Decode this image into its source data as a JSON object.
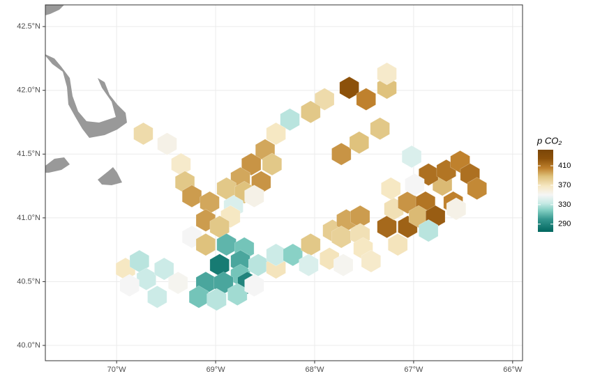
{
  "chart_data": {
    "type": "map",
    "xlim": [
      -70.72,
      -65.9
    ],
    "ylim": [
      39.88,
      42.67
    ],
    "xticks": [
      {
        "value": -70,
        "label": "70°W"
      },
      {
        "value": -69,
        "label": "69°W"
      },
      {
        "value": -68,
        "label": "68°W"
      },
      {
        "value": -67,
        "label": "67°W"
      },
      {
        "value": -66,
        "label": "66°W"
      }
    ],
    "yticks": [
      {
        "value": 40.0,
        "label": "40.0°N"
      },
      {
        "value": 40.5,
        "label": "40.5°N"
      },
      {
        "value": 41.0,
        "label": "41.0°N"
      },
      {
        "value": 41.5,
        "label": "41.5°N"
      },
      {
        "value": 42.0,
        "label": "42.0°N"
      },
      {
        "value": 42.5,
        "label": "42.5°N"
      }
    ],
    "grid": true,
    "legend_title": "p CO₂",
    "clim": [
      274,
      443
    ],
    "cticks": [
      290,
      330,
      370,
      410
    ],
    "colorscale": [
      {
        "value": 274,
        "color": "#01665e"
      },
      {
        "value": 300,
        "color": "#35978f"
      },
      {
        "value": 318,
        "color": "#80cdc1"
      },
      {
        "value": 333,
        "color": "#c7eae5"
      },
      {
        "value": 350,
        "color": "#f5f5f5"
      },
      {
        "value": 368,
        "color": "#f6e8c3"
      },
      {
        "value": 388,
        "color": "#dfc27d"
      },
      {
        "value": 405,
        "color": "#bf812d"
      },
      {
        "value": 425,
        "color": "#8c510a"
      },
      {
        "value": 443,
        "color": "#7a4608"
      }
    ],
    "cells": [
      {
        "lon": -67.65,
        "lat": 42.02,
        "value": 425
      },
      {
        "lon": -67.27,
        "lat": 42.02,
        "value": 388
      },
      {
        "lon": -67.48,
        "lat": 41.93,
        "value": 405
      },
      {
        "lon": -67.27,
        "lat": 42.13,
        "value": 365
      },
      {
        "lon": -67.9,
        "lat": 41.93,
        "value": 375
      },
      {
        "lon": -68.04,
        "lat": 41.83,
        "value": 385
      },
      {
        "lon": -68.25,
        "lat": 41.77,
        "value": 330
      },
      {
        "lon": -68.39,
        "lat": 41.66,
        "value": 368
      },
      {
        "lon": -68.5,
        "lat": 41.53,
        "value": 395
      },
      {
        "lon": -68.64,
        "lat": 41.42,
        "value": 400
      },
      {
        "lon": -68.43,
        "lat": 41.42,
        "value": 385
      },
      {
        "lon": -68.75,
        "lat": 41.31,
        "value": 395
      },
      {
        "lon": -68.54,
        "lat": 41.28,
        "value": 400
      },
      {
        "lon": -68.89,
        "lat": 41.23,
        "value": 385
      },
      {
        "lon": -68.71,
        "lat": 41.2,
        "value": 388
      },
      {
        "lon": -68.61,
        "lat": 41.17,
        "value": 355
      },
      {
        "lon": -68.82,
        "lat": 41.09,
        "value": 340
      },
      {
        "lon": -68.85,
        "lat": 41.01,
        "value": 368
      },
      {
        "lon": -69.73,
        "lat": 41.66,
        "value": 375
      },
      {
        "lon": -69.49,
        "lat": 41.58,
        "value": 355
      },
      {
        "lon": -69.35,
        "lat": 41.42,
        "value": 365
      },
      {
        "lon": -69.31,
        "lat": 41.28,
        "value": 385
      },
      {
        "lon": -69.24,
        "lat": 41.17,
        "value": 398
      },
      {
        "lon": -69.06,
        "lat": 41.12,
        "value": 395
      },
      {
        "lon": -69.1,
        "lat": 40.98,
        "value": 398
      },
      {
        "lon": -69.24,
        "lat": 40.85,
        "value": 350
      },
      {
        "lon": -69.1,
        "lat": 40.79,
        "value": 388
      },
      {
        "lon": -68.96,
        "lat": 40.93,
        "value": 385
      },
      {
        "lon": -68.89,
        "lat": 40.79,
        "value": 310
      },
      {
        "lon": -68.71,
        "lat": 40.76,
        "value": 315
      },
      {
        "lon": -68.96,
        "lat": 40.63,
        "value": 285
      },
      {
        "lon": -68.75,
        "lat": 40.66,
        "value": 305
      },
      {
        "lon": -68.75,
        "lat": 40.55,
        "value": 315
      },
      {
        "lon": -68.68,
        "lat": 40.49,
        "value": 290
      },
      {
        "lon": -69.1,
        "lat": 40.49,
        "value": 305
      },
      {
        "lon": -69.17,
        "lat": 40.38,
        "value": 315
      },
      {
        "lon": -68.92,
        "lat": 40.49,
        "value": 305
      },
      {
        "lon": -68.99,
        "lat": 40.36,
        "value": 330
      },
      {
        "lon": -68.78,
        "lat": 40.4,
        "value": 325
      },
      {
        "lon": -68.57,
        "lat": 40.63,
        "value": 330
      },
      {
        "lon": -68.61,
        "lat": 40.47,
        "value": 350
      },
      {
        "lon": -68.39,
        "lat": 40.61,
        "value": 370
      },
      {
        "lon": -68.39,
        "lat": 40.71,
        "value": 335
      },
      {
        "lon": -68.22,
        "lat": 40.71,
        "value": 320
      },
      {
        "lon": -69.91,
        "lat": 40.6,
        "value": 368
      },
      {
        "lon": -69.77,
        "lat": 40.66,
        "value": 330
      },
      {
        "lon": -69.7,
        "lat": 40.52,
        "value": 335
      },
      {
        "lon": -69.52,
        "lat": 40.6,
        "value": 335
      },
      {
        "lon": -69.59,
        "lat": 40.38,
        "value": 335
      },
      {
        "lon": -69.38,
        "lat": 40.49,
        "value": 352
      },
      {
        "lon": -69.87,
        "lat": 40.47,
        "value": 350
      },
      {
        "lon": -68.04,
        "lat": 40.79,
        "value": 385
      },
      {
        "lon": -67.82,
        "lat": 40.9,
        "value": 382
      },
      {
        "lon": -67.68,
        "lat": 40.98,
        "value": 395
      },
      {
        "lon": -67.54,
        "lat": 41.01,
        "value": 398
      },
      {
        "lon": -67.73,
        "lat": 40.85,
        "value": 380
      },
      {
        "lon": -67.54,
        "lat": 40.87,
        "value": 372
      },
      {
        "lon": -67.51,
        "lat": 40.76,
        "value": 368
      },
      {
        "lon": -67.27,
        "lat": 40.93,
        "value": 415
      },
      {
        "lon": -67.06,
        "lat": 40.93,
        "value": 418
      },
      {
        "lon": -67.2,
        "lat": 41.07,
        "value": 372
      },
      {
        "lon": -67.06,
        "lat": 41.12,
        "value": 400
      },
      {
        "lon": -66.88,
        "lat": 41.12,
        "value": 410
      },
      {
        "lon": -66.95,
        "lat": 41.01,
        "value": 390
      },
      {
        "lon": -66.78,
        "lat": 41.01,
        "value": 420
      },
      {
        "lon": -66.85,
        "lat": 40.9,
        "value": 330
      },
      {
        "lon": -66.6,
        "lat": 41.12,
        "value": 405
      },
      {
        "lon": -66.71,
        "lat": 41.26,
        "value": 390
      },
      {
        "lon": -66.85,
        "lat": 41.34,
        "value": 412
      },
      {
        "lon": -66.67,
        "lat": 41.37,
        "value": 410
      },
      {
        "lon": -66.53,
        "lat": 41.44,
        "value": 405
      },
      {
        "lon": -66.43,
        "lat": 41.34,
        "value": 412
      },
      {
        "lon": -66.36,
        "lat": 41.23,
        "value": 403
      },
      {
        "lon": -66.99,
        "lat": 41.26,
        "value": 350
      },
      {
        "lon": -67.02,
        "lat": 41.48,
        "value": 340
      },
      {
        "lon": -67.23,
        "lat": 41.23,
        "value": 368
      },
      {
        "lon": -67.16,
        "lat": 40.79,
        "value": 370
      },
      {
        "lon": -66.57,
        "lat": 41.07,
        "value": 355
      },
      {
        "lon": -67.85,
        "lat": 40.68,
        "value": 370
      },
      {
        "lon": -68.06,
        "lat": 40.63,
        "value": 340
      },
      {
        "lon": -67.71,
        "lat": 40.63,
        "value": 352
      },
      {
        "lon": -67.43,
        "lat": 40.66,
        "value": 365
      },
      {
        "lon": -67.73,
        "lat": 41.5,
        "value": 400
      },
      {
        "lon": -67.55,
        "lat": 41.59,
        "value": 388
      },
      {
        "lon": -67.34,
        "lat": 41.7,
        "value": 385
      }
    ]
  }
}
